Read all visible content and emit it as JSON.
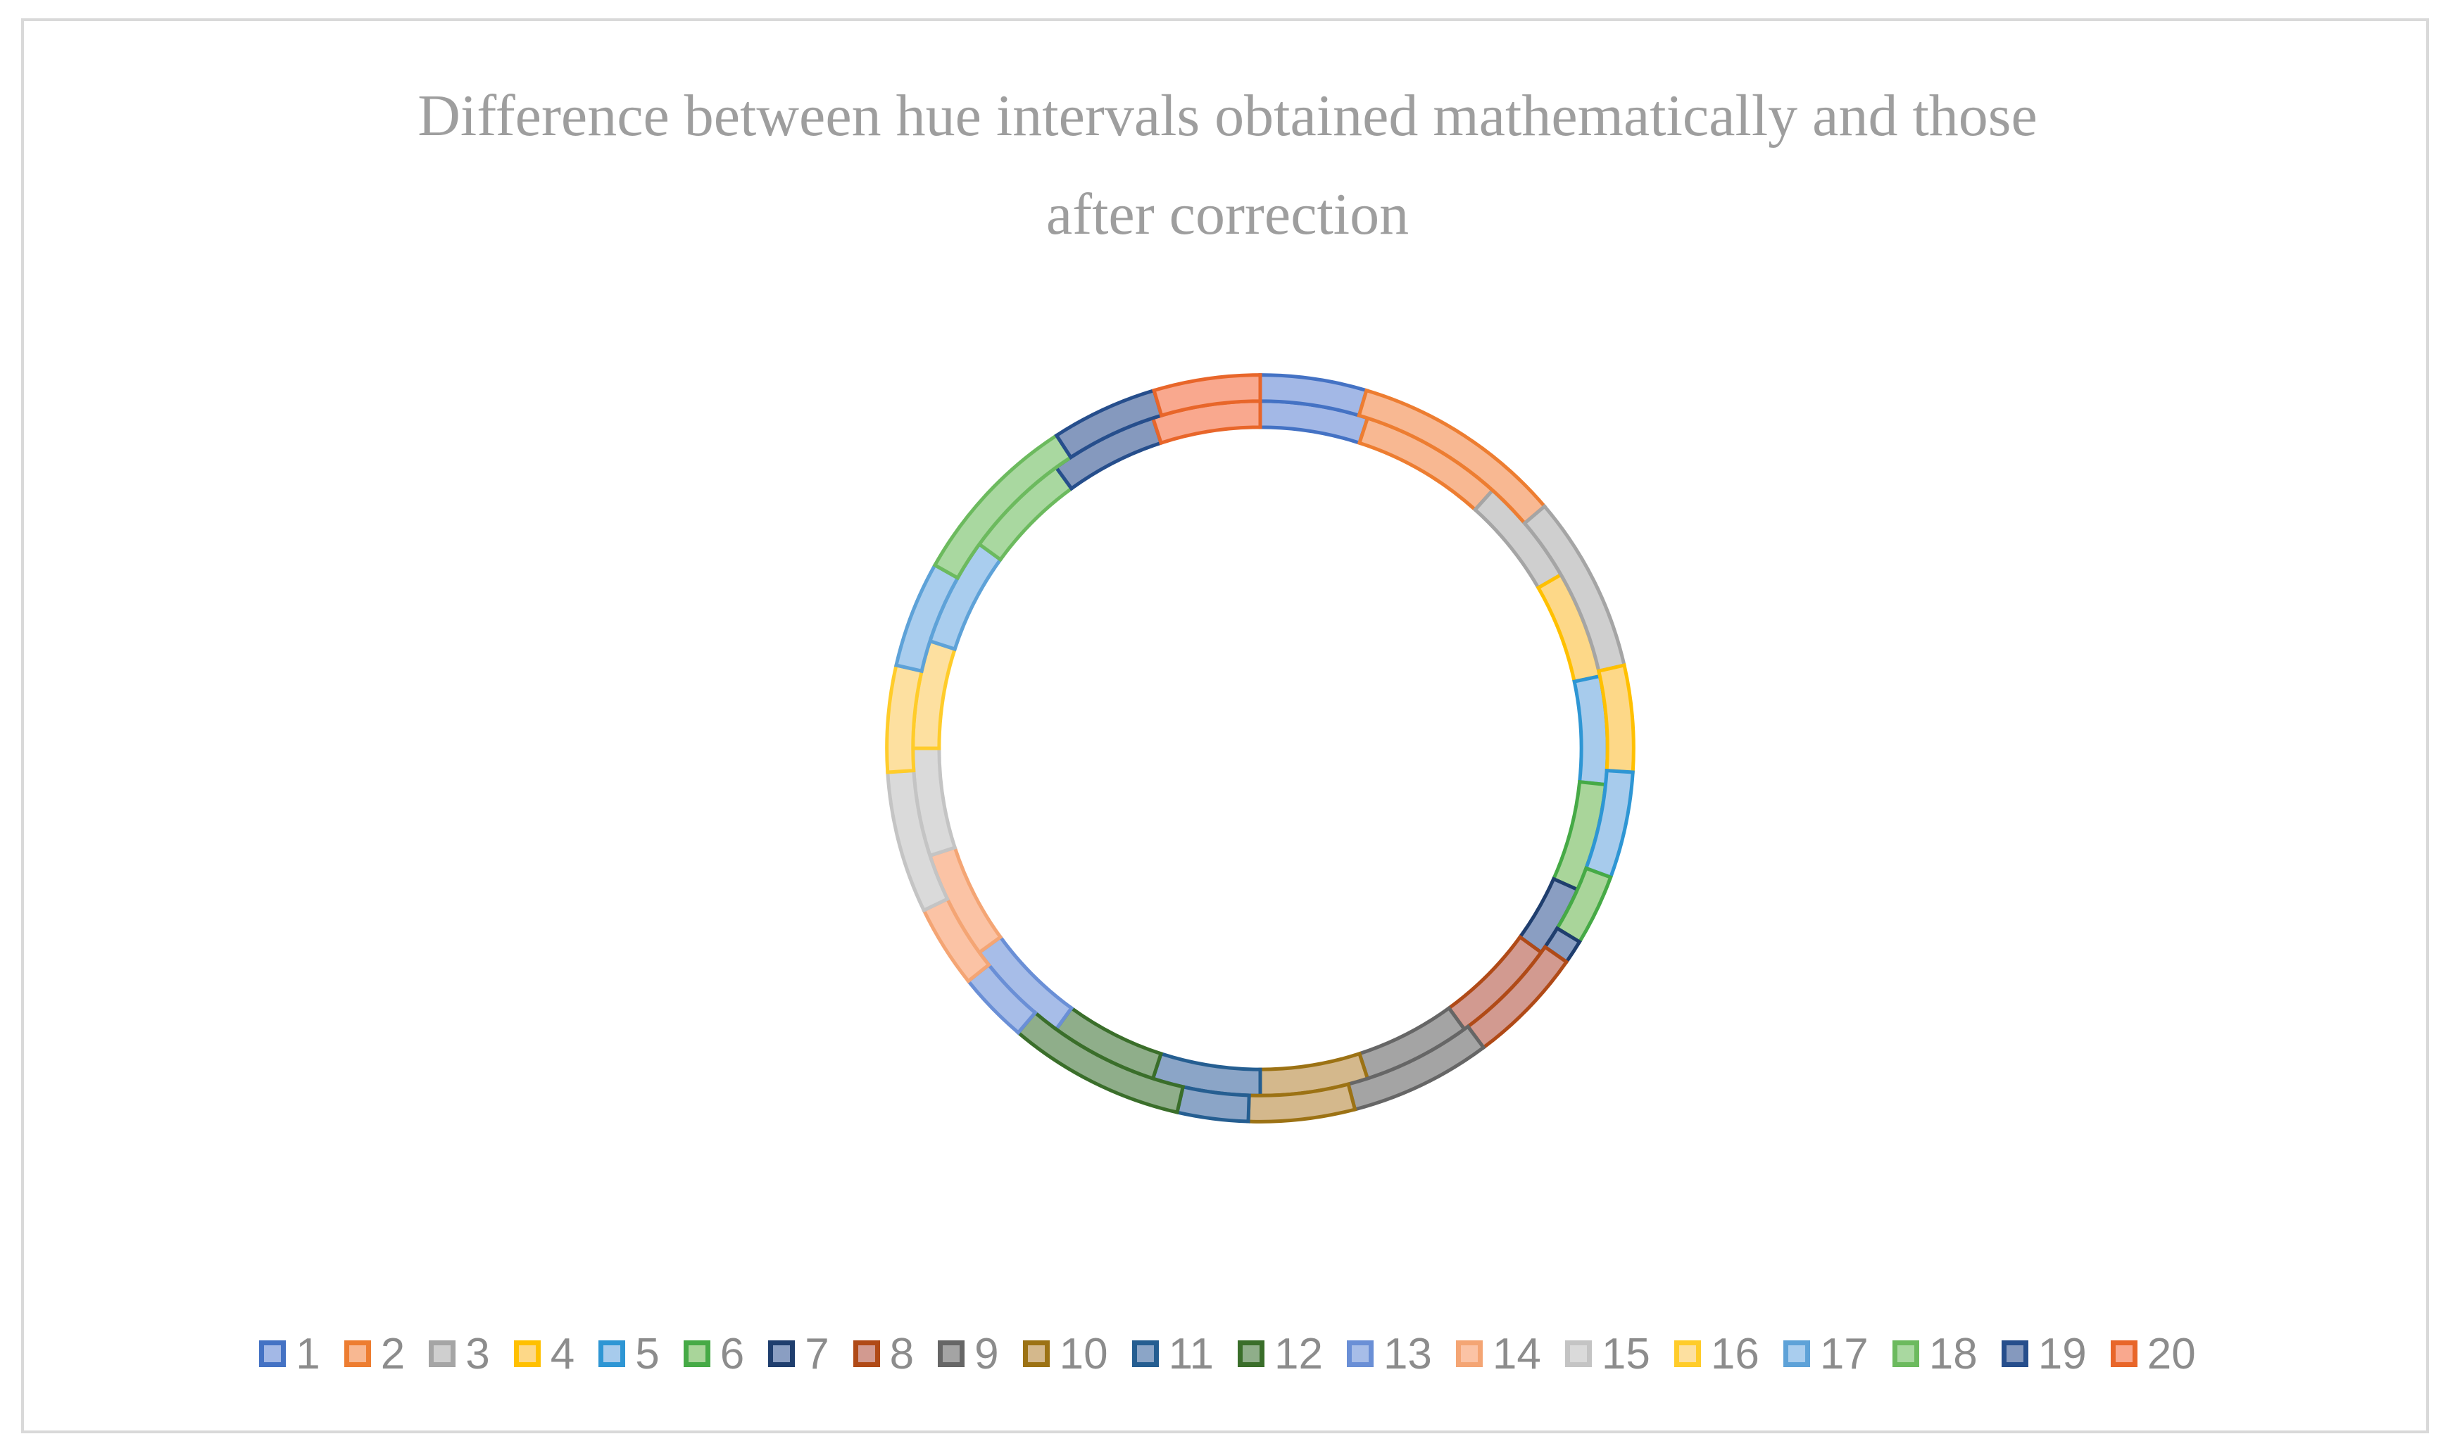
{
  "chart_data": {
    "type": "donut",
    "title_lines": [
      "Difference between hue intervals obtained mathematically and those",
      "after correction"
    ],
    "legend_position": "bottom",
    "series": [
      {
        "ring": "inner",
        "values": [
          18,
          24,
          18,
          18,
          18,
          18,
          12,
          18,
          18,
          18,
          18,
          18,
          18,
          18,
          18,
          18,
          18,
          18,
          18,
          18
        ]
      },
      {
        "ring": "outer",
        "values": [
          18,
          36,
          30,
          18,
          18,
          12,
          4,
          20,
          24,
          18,
          12,
          30,
          12,
          14,
          24,
          18,
          18,
          30,
          18,
          18
        ]
      }
    ],
    "categories": [
      {
        "label": "1",
        "fill": "#a3b8e6",
        "stroke": "#4472c4"
      },
      {
        "label": "2",
        "fill": "#f8b892",
        "stroke": "#ed7d31"
      },
      {
        "label": "3",
        "fill": "#cfcfcf",
        "stroke": "#a5a5a5"
      },
      {
        "label": "4",
        "fill": "#fdd888",
        "stroke": "#ffc000"
      },
      {
        "label": "5",
        "fill": "#a7cbec",
        "stroke": "#2e96d4"
      },
      {
        "label": "6",
        "fill": "#a9d59a",
        "stroke": "#46aa46"
      },
      {
        "label": "7",
        "fill": "#8a9ec2",
        "stroke": "#1f3e6e"
      },
      {
        "label": "8",
        "fill": "#d29a90",
        "stroke": "#b04a17"
      },
      {
        "label": "9",
        "fill": "#a4a4a4",
        "stroke": "#666666"
      },
      {
        "label": "10",
        "fill": "#d4b88c",
        "stroke": "#9c7214"
      },
      {
        "label": "11",
        "fill": "#8ba5c7",
        "stroke": "#255e91"
      },
      {
        "label": "12",
        "fill": "#8fae8a",
        "stroke": "#3a6e2a"
      },
      {
        "label": "13",
        "fill": "#a7bde8",
        "stroke": "#6a8fd6"
      },
      {
        "label": "14",
        "fill": "#fbc3a5",
        "stroke": "#f4a574"
      },
      {
        "label": "15",
        "fill": "#dadada",
        "stroke": "#c4c4c4"
      },
      {
        "label": "16",
        "fill": "#fde0a0",
        "stroke": "#ffcc2a"
      },
      {
        "label": "17",
        "fill": "#a9cdee",
        "stroke": "#5ea2d8"
      },
      {
        "label": "18",
        "fill": "#a9d8a0",
        "stroke": "#6cba5e"
      },
      {
        "label": "19",
        "fill": "#8599be",
        "stroke": "#264e8c"
      },
      {
        "label": "20",
        "fill": "#f9a88e",
        "stroke": "#e8662a"
      }
    ]
  }
}
